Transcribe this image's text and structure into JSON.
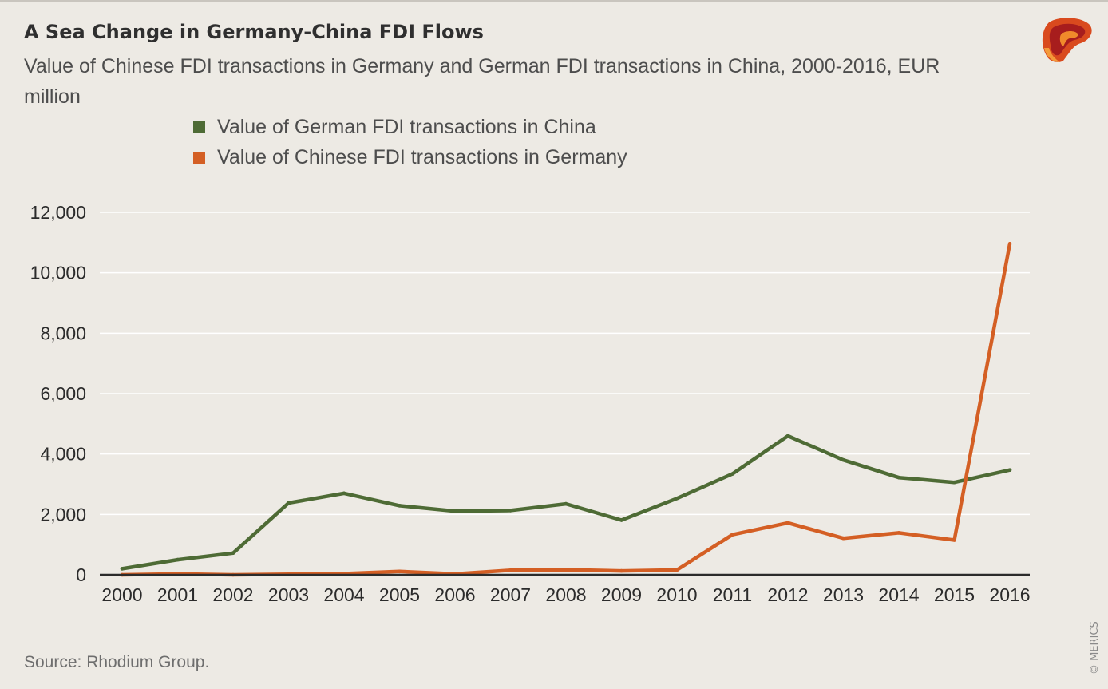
{
  "title": "A Sea Change in Germany-China FDI Flows",
  "subtitle": "Value of Chinese FDI transactions in Germany and German FDI transactions in China, 2000-2016, EUR million",
  "source": "Source: Rhodium Group.",
  "copyright": "© MERICS",
  "colors": {
    "german_fdi": "#4e6b35",
    "chinese_fdi": "#d45f24",
    "background": "#edeae4",
    "gridline": "#ffffff",
    "axis": "#2b2b2b"
  },
  "logo": {
    "icon": "merics-logo-icon"
  },
  "chart_data": {
    "type": "line",
    "categories": [
      "2000",
      "2001",
      "2002",
      "2003",
      "2004",
      "2005",
      "2006",
      "2007",
      "2008",
      "2009",
      "2010",
      "2011",
      "2012",
      "2013",
      "2014",
      "2015",
      "2016"
    ],
    "series": [
      {
        "name": "Value of German FDI transactions in China",
        "color": "#4e6b35",
        "values": [
          200,
          500,
          720,
          2380,
          2700,
          2290,
          2110,
          2130,
          2350,
          1810,
          2530,
          3340,
          4600,
          3800,
          3220,
          3060,
          3470
        ]
      },
      {
        "name": "Value of Chinese FDI transactions in Germany",
        "color": "#d45f24",
        "values": [
          0,
          30,
          0,
          20,
          40,
          110,
          30,
          150,
          170,
          130,
          160,
          1330,
          1720,
          1210,
          1390,
          1150,
          10960
        ]
      }
    ],
    "yticks": [
      "0",
      "2,000",
      "4,000",
      "6,000",
      "8,000",
      "10,000",
      "12,000"
    ],
    "ylim": [
      0,
      12000
    ],
    "grid": true,
    "legend_position": "top-left"
  }
}
